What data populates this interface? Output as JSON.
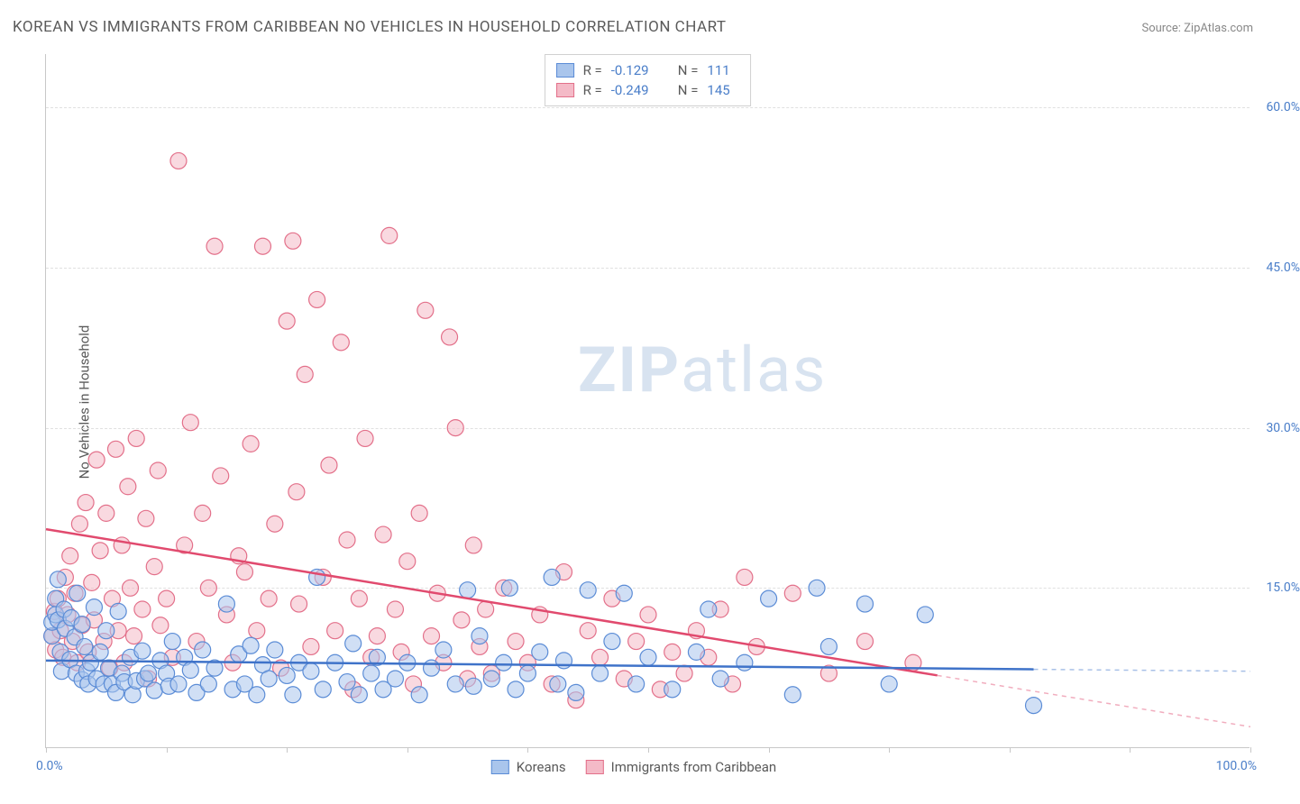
{
  "title": "KOREAN VS IMMIGRANTS FROM CARIBBEAN NO VEHICLES IN HOUSEHOLD CORRELATION CHART",
  "source": "Source: ZipAtlas.com",
  "ylabel": "No Vehicles in Household",
  "watermark_bold": "ZIP",
  "watermark_light": "atlas",
  "chart": {
    "type": "scatter",
    "xlim": [
      0,
      100
    ],
    "ylim": [
      0,
      65
    ],
    "xticks": [
      0,
      10,
      20,
      30,
      40,
      50,
      60,
      70,
      80,
      90,
      100
    ],
    "xtick_labels_shown": {
      "0": "0.0%",
      "100": "100.0%"
    },
    "yticks": [
      15,
      30,
      45,
      60
    ],
    "ytick_labels": [
      "15.0%",
      "30.0%",
      "45.0%",
      "60.0%"
    ],
    "grid_color": "#e0e0e0",
    "axis_color": "#c8c8c8",
    "background_color": "#ffffff",
    "tick_label_color": "#4a7ec9",
    "label_fontsize": 15,
    "tick_fontsize": 14
  },
  "series": {
    "koreans": {
      "label": "Koreans",
      "fill": "#a9c5ec",
      "stroke": "#5b8cd6",
      "fill_opacity": 0.55,
      "marker_r": 9,
      "R": "-0.129",
      "N": "111",
      "trend": {
        "x1": 0,
        "y1": 8.2,
        "x2": 100,
        "y2": 7.2,
        "solid_until": 82,
        "stroke": "#3f73c9",
        "width": 2.5
      },
      "points": [
        [
          0.5,
          10.5
        ],
        [
          0.5,
          11.8
        ],
        [
          0.8,
          12.5
        ],
        [
          0.8,
          14.0
        ],
        [
          1.0,
          15.8
        ],
        [
          1.0,
          12.0
        ],
        [
          1.2,
          9.0
        ],
        [
          1.3,
          7.2
        ],
        [
          1.5,
          13.0
        ],
        [
          1.6,
          11.2
        ],
        [
          2.0,
          8.3
        ],
        [
          2.1,
          12.2
        ],
        [
          2.4,
          10.4
        ],
        [
          2.5,
          7.0
        ],
        [
          2.6,
          14.5
        ],
        [
          3.0,
          6.4
        ],
        [
          3.0,
          11.6
        ],
        [
          3.2,
          9.5
        ],
        [
          3.4,
          7.2
        ],
        [
          3.5,
          6.0
        ],
        [
          3.7,
          8.0
        ],
        [
          4.0,
          13.2
        ],
        [
          4.2,
          6.5
        ],
        [
          4.5,
          9.0
        ],
        [
          4.8,
          6.0
        ],
        [
          5.0,
          11.0
        ],
        [
          5.2,
          7.5
        ],
        [
          5.5,
          6.0
        ],
        [
          5.8,
          5.2
        ],
        [
          6.0,
          12.8
        ],
        [
          6.3,
          7.0
        ],
        [
          6.5,
          6.2
        ],
        [
          7.0,
          8.5
        ],
        [
          7.2,
          5.0
        ],
        [
          7.5,
          6.3
        ],
        [
          8.0,
          9.1
        ],
        [
          8.2,
          6.5
        ],
        [
          8.5,
          7.0
        ],
        [
          9.0,
          5.4
        ],
        [
          9.5,
          8.2
        ],
        [
          10.0,
          7.0
        ],
        [
          10.2,
          5.8
        ],
        [
          10.5,
          10.0
        ],
        [
          11.0,
          6.0
        ],
        [
          11.5,
          8.5
        ],
        [
          12.0,
          7.3
        ],
        [
          12.5,
          5.2
        ],
        [
          13.0,
          9.2
        ],
        [
          13.5,
          6.0
        ],
        [
          14.0,
          7.5
        ],
        [
          15.0,
          13.5
        ],
        [
          15.5,
          5.5
        ],
        [
          16.0,
          8.8
        ],
        [
          16.5,
          6.0
        ],
        [
          17.0,
          9.6
        ],
        [
          17.5,
          5.0
        ],
        [
          18.0,
          7.8
        ],
        [
          18.5,
          6.5
        ],
        [
          19.0,
          9.2
        ],
        [
          20.0,
          6.8
        ],
        [
          20.5,
          5.0
        ],
        [
          21.0,
          8.0
        ],
        [
          22.0,
          7.2
        ],
        [
          22.5,
          16.0
        ],
        [
          23.0,
          5.5
        ],
        [
          24.0,
          8.0
        ],
        [
          25.0,
          6.2
        ],
        [
          25.5,
          9.8
        ],
        [
          26.0,
          5.0
        ],
        [
          27.0,
          7.0
        ],
        [
          27.5,
          8.5
        ],
        [
          28.0,
          5.5
        ],
        [
          29.0,
          6.5
        ],
        [
          30.0,
          8.0
        ],
        [
          31.0,
          5.0
        ],
        [
          32.0,
          7.5
        ],
        [
          33.0,
          9.2
        ],
        [
          34.0,
          6.0
        ],
        [
          35.0,
          14.8
        ],
        [
          35.5,
          5.8
        ],
        [
          36.0,
          10.5
        ],
        [
          37.0,
          6.5
        ],
        [
          38.0,
          8.0
        ],
        [
          38.5,
          15.0
        ],
        [
          39.0,
          5.5
        ],
        [
          40.0,
          7.0
        ],
        [
          41.0,
          9.0
        ],
        [
          42.0,
          16.0
        ],
        [
          42.5,
          6.0
        ],
        [
          43.0,
          8.2
        ],
        [
          44.0,
          5.2
        ],
        [
          45.0,
          14.8
        ],
        [
          46.0,
          7.0
        ],
        [
          47.0,
          10.0
        ],
        [
          48.0,
          14.5
        ],
        [
          49.0,
          6.0
        ],
        [
          50.0,
          8.5
        ],
        [
          52.0,
          5.5
        ],
        [
          54.0,
          9.0
        ],
        [
          55.0,
          13.0
        ],
        [
          56.0,
          6.5
        ],
        [
          58.0,
          8.0
        ],
        [
          60.0,
          14.0
        ],
        [
          62.0,
          5.0
        ],
        [
          64.0,
          15.0
        ],
        [
          65.0,
          9.5
        ],
        [
          68.0,
          13.5
        ],
        [
          70.0,
          6.0
        ],
        [
          73.0,
          12.5
        ],
        [
          82.0,
          4.0
        ]
      ]
    },
    "caribbean": {
      "label": "Immigrants from Caribbean",
      "fill": "#f4bac7",
      "stroke": "#e3708a",
      "fill_opacity": 0.55,
      "marker_r": 9,
      "R": "-0.249",
      "N": "145",
      "trend": {
        "x1": 0,
        "y1": 20.5,
        "x2": 100,
        "y2": 2.0,
        "solid_until": 74,
        "stroke": "#e14a6e",
        "width": 2.5
      },
      "points": [
        [
          0.5,
          10.5
        ],
        [
          0.7,
          12.8
        ],
        [
          0.8,
          9.2
        ],
        [
          1.0,
          14.0
        ],
        [
          1.2,
          11.0
        ],
        [
          1.4,
          8.5
        ],
        [
          1.6,
          16.0
        ],
        [
          1.8,
          12.5
        ],
        [
          2.0,
          18.0
        ],
        [
          2.2,
          10.0
        ],
        [
          2.4,
          14.5
        ],
        [
          2.6,
          8.0
        ],
        [
          2.8,
          21.0
        ],
        [
          3.0,
          11.5
        ],
        [
          3.3,
          23.0
        ],
        [
          3.5,
          9.0
        ],
        [
          3.8,
          15.5
        ],
        [
          4.0,
          12.0
        ],
        [
          4.2,
          27.0
        ],
        [
          4.5,
          18.5
        ],
        [
          4.8,
          10.0
        ],
        [
          5.0,
          22.0
        ],
        [
          5.3,
          7.5
        ],
        [
          5.5,
          14.0
        ],
        [
          5.8,
          28.0
        ],
        [
          6.0,
          11.0
        ],
        [
          6.3,
          19.0
        ],
        [
          6.5,
          8.0
        ],
        [
          6.8,
          24.5
        ],
        [
          7.0,
          15.0
        ],
        [
          7.3,
          10.5
        ],
        [
          7.5,
          29.0
        ],
        [
          8.0,
          13.0
        ],
        [
          8.3,
          21.5
        ],
        [
          8.5,
          6.5
        ],
        [
          9.0,
          17.0
        ],
        [
          9.3,
          26.0
        ],
        [
          9.5,
          11.5
        ],
        [
          10.0,
          14.0
        ],
        [
          10.5,
          8.5
        ],
        [
          11.0,
          55.0
        ],
        [
          11.5,
          19.0
        ],
        [
          12.0,
          30.5
        ],
        [
          12.5,
          10.0
        ],
        [
          13.0,
          22.0
        ],
        [
          13.5,
          15.0
        ],
        [
          14.0,
          47.0
        ],
        [
          14.5,
          25.5
        ],
        [
          15.0,
          12.5
        ],
        [
          15.5,
          8.0
        ],
        [
          16.0,
          18.0
        ],
        [
          16.5,
          16.5
        ],
        [
          17.0,
          28.5
        ],
        [
          17.5,
          11.0
        ],
        [
          18.0,
          47.0
        ],
        [
          18.5,
          14.0
        ],
        [
          19.0,
          21.0
        ],
        [
          19.5,
          7.5
        ],
        [
          20.0,
          40.0
        ],
        [
          20.5,
          47.5
        ],
        [
          20.8,
          24.0
        ],
        [
          21.0,
          13.5
        ],
        [
          21.5,
          35.0
        ],
        [
          22.0,
          9.5
        ],
        [
          22.5,
          42.0
        ],
        [
          23.0,
          16.0
        ],
        [
          23.5,
          26.5
        ],
        [
          24.0,
          11.0
        ],
        [
          24.5,
          38.0
        ],
        [
          25.0,
          19.5
        ],
        [
          25.5,
          5.5
        ],
        [
          26.0,
          14.0
        ],
        [
          26.5,
          29.0
        ],
        [
          27.0,
          8.5
        ],
        [
          27.5,
          10.5
        ],
        [
          28.0,
          20.0
        ],
        [
          28.5,
          48.0
        ],
        [
          29.0,
          13.0
        ],
        [
          29.5,
          9.0
        ],
        [
          30.0,
          17.5
        ],
        [
          30.5,
          6.0
        ],
        [
          31.0,
          22.0
        ],
        [
          31.5,
          41.0
        ],
        [
          32.0,
          10.5
        ],
        [
          32.5,
          14.5
        ],
        [
          33.0,
          8.0
        ],
        [
          33.5,
          38.5
        ],
        [
          34.0,
          30.0
        ],
        [
          34.5,
          12.0
        ],
        [
          35.0,
          6.5
        ],
        [
          35.5,
          19.0
        ],
        [
          36.0,
          9.5
        ],
        [
          36.5,
          13.0
        ],
        [
          37.0,
          7.0
        ],
        [
          38.0,
          15.0
        ],
        [
          39.0,
          10.0
        ],
        [
          40.0,
          8.0
        ],
        [
          41.0,
          12.5
        ],
        [
          42.0,
          6.0
        ],
        [
          43.0,
          16.5
        ],
        [
          44.0,
          4.5
        ],
        [
          45.0,
          11.0
        ],
        [
          46.0,
          8.5
        ],
        [
          47.0,
          14.0
        ],
        [
          48.0,
          6.5
        ],
        [
          49.0,
          10.0
        ],
        [
          50.0,
          12.5
        ],
        [
          51.0,
          5.5
        ],
        [
          52.0,
          9.0
        ],
        [
          53.0,
          7.0
        ],
        [
          54.0,
          11.0
        ],
        [
          55.0,
          8.5
        ],
        [
          56.0,
          13.0
        ],
        [
          57.0,
          6.0
        ],
        [
          58.0,
          16.0
        ],
        [
          59.0,
          9.5
        ],
        [
          62.0,
          14.5
        ],
        [
          65.0,
          7.0
        ],
        [
          68.0,
          10.0
        ],
        [
          72.0,
          8.0
        ]
      ]
    }
  },
  "legend_top": {
    "R_label": "R =",
    "N_label": "N ="
  },
  "legend_bottom": {
    "items": [
      "koreans",
      "caribbean"
    ]
  }
}
